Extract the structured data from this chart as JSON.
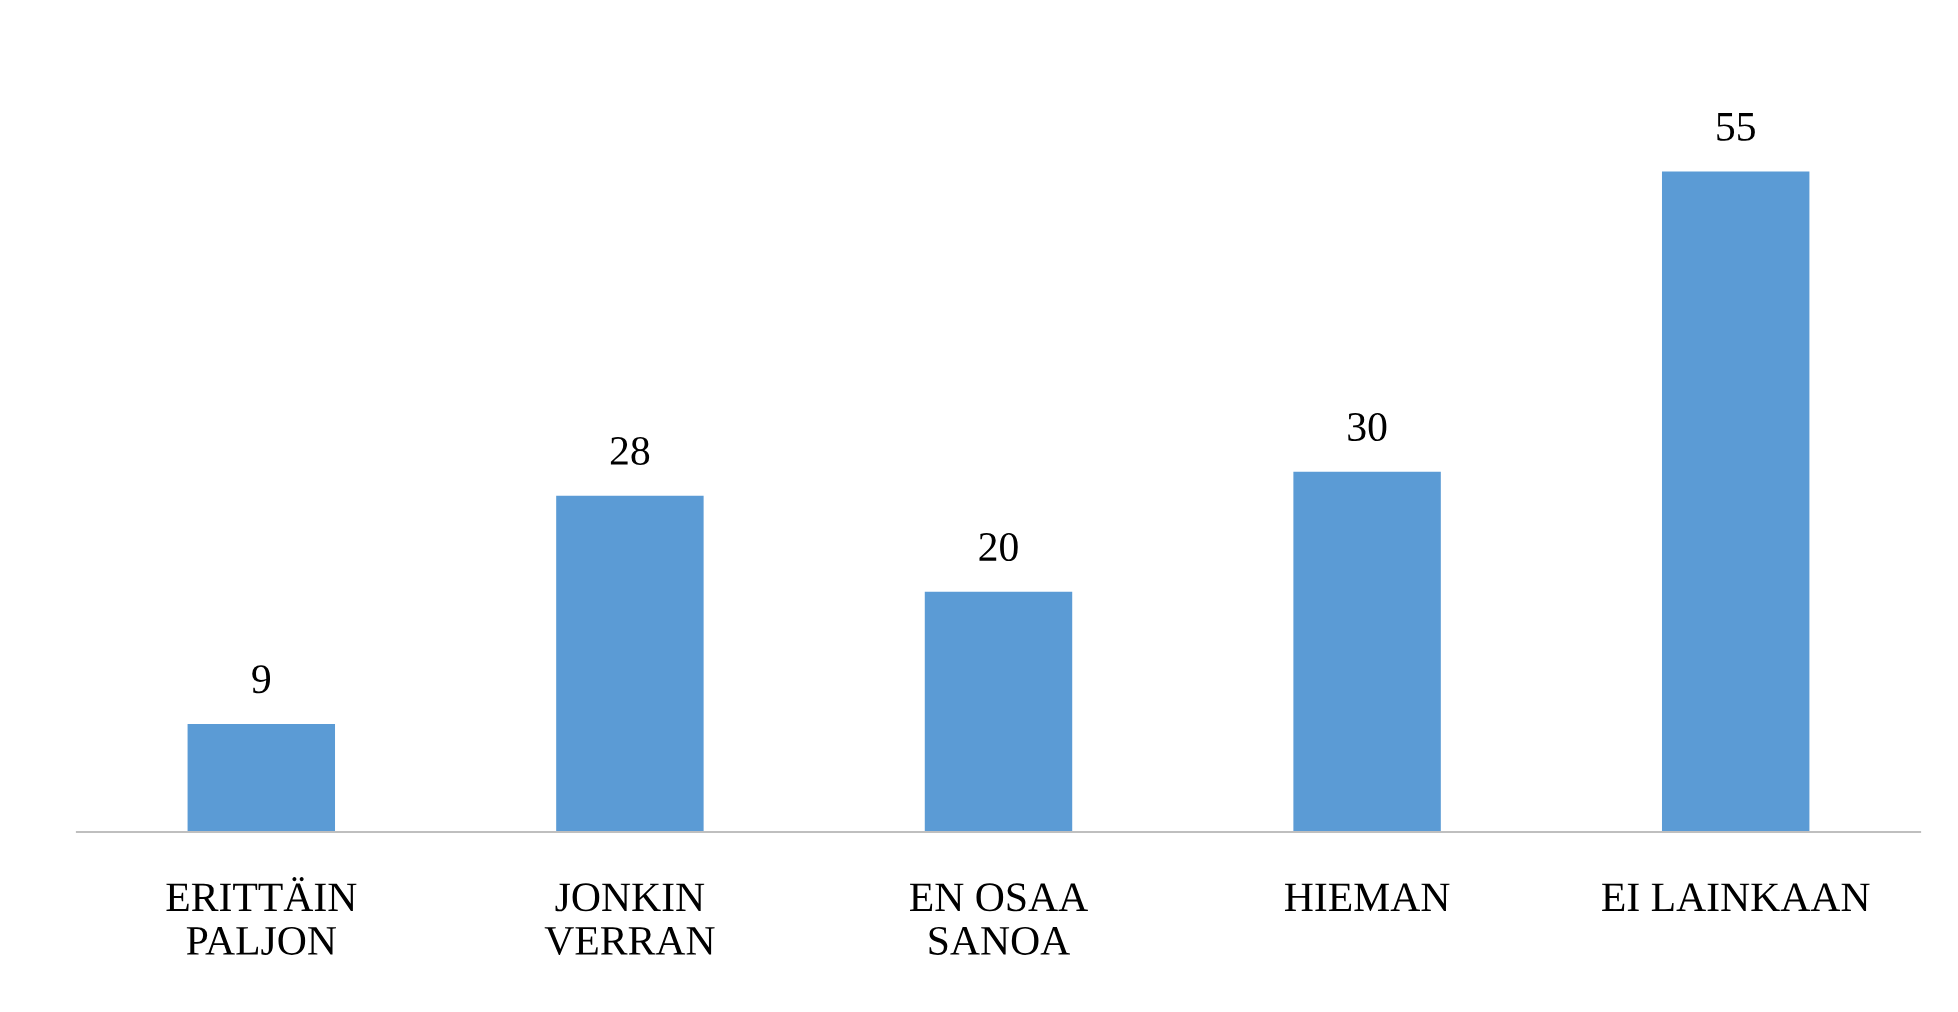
{
  "chart_data": {
    "type": "bar",
    "categories": [
      "ERITTÄIN\nPALJON",
      "JONKIN\nVERRAN",
      "EN OSAA\nSANOA",
      "HIEMAN",
      "EI LAINKAAN"
    ],
    "values": [
      9,
      28,
      20,
      30,
      55
    ],
    "color": "#5b9bd5",
    "tick_labels": "x",
    "data_labels": true,
    "grid": false,
    "legend": false
  }
}
